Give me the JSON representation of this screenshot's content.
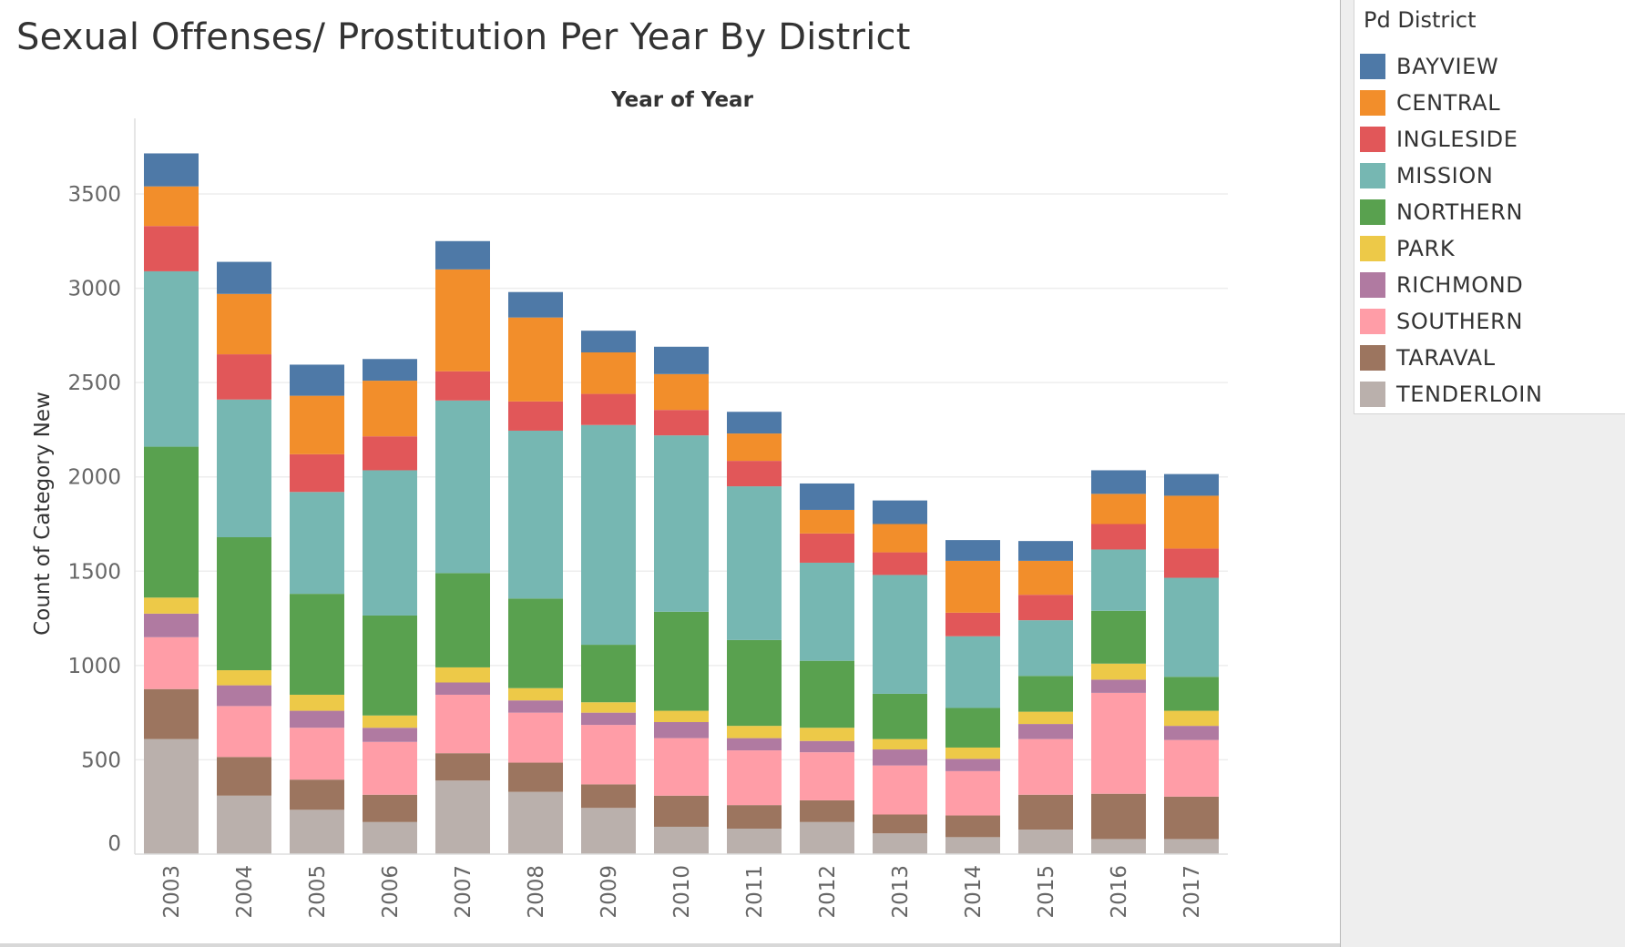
{
  "title": "Sexual Offenses/ Prostitution Per Year By District",
  "legend_title": "Pd District",
  "chart_data": {
    "type": "bar",
    "stacked": true,
    "title": "Sexual Offenses/ Prostitution Per Year By District",
    "xlabel": "Year of Year",
    "ylabel": "Count of Category New",
    "ylim": [
      0,
      3500
    ],
    "yticks": [
      0,
      500,
      1000,
      1500,
      2000,
      2500,
      3000,
      3500
    ],
    "grid": true,
    "legend_position": "right",
    "categories": [
      "2003",
      "2004",
      "2005",
      "2006",
      "2007",
      "2008",
      "2009",
      "2010",
      "2011",
      "2012",
      "2013",
      "2014",
      "2015",
      "2016",
      "2017"
    ],
    "series": [
      {
        "name": "TENDERLOIN",
        "color": "#bab0ac",
        "values": [
          610,
          310,
          235,
          170,
          390,
          330,
          245,
          145,
          135,
          170,
          110,
          90,
          130,
          80,
          80
        ]
      },
      {
        "name": "TARAVAL",
        "color": "#9c755f",
        "values": [
          265,
          205,
          160,
          145,
          145,
          155,
          125,
          165,
          125,
          115,
          100,
          115,
          185,
          240,
          225
        ]
      },
      {
        "name": "SOUTHERN",
        "color": "#ff9da7",
        "values": [
          275,
          270,
          275,
          280,
          310,
          265,
          315,
          305,
          290,
          255,
          260,
          235,
          295,
          535,
          300
        ]
      },
      {
        "name": "RICHMOND",
        "color": "#b07aa1",
        "values": [
          125,
          110,
          90,
          75,
          65,
          65,
          65,
          85,
          65,
          60,
          85,
          65,
          80,
          70,
          75
        ]
      },
      {
        "name": "PARK",
        "color": "#edc948",
        "values": [
          85,
          80,
          85,
          65,
          80,
          65,
          55,
          60,
          65,
          70,
          55,
          60,
          65,
          85,
          80
        ]
      },
      {
        "name": "NORTHERN",
        "color": "#59a14f",
        "values": [
          800,
          705,
          535,
          530,
          500,
          475,
          305,
          525,
          455,
          355,
          240,
          210,
          190,
          280,
          180
        ]
      },
      {
        "name": "MISSION",
        "color": "#76b7b2",
        "values": [
          930,
          730,
          540,
          770,
          915,
          890,
          1165,
          935,
          815,
          520,
          630,
          380,
          295,
          325,
          525
        ]
      },
      {
        "name": "INGLESIDE",
        "color": "#e15759",
        "values": [
          240,
          240,
          200,
          180,
          155,
          155,
          165,
          135,
          135,
          155,
          120,
          125,
          135,
          135,
          155
        ]
      },
      {
        "name": "CENTRAL",
        "color": "#f28e2b",
        "values": [
          210,
          320,
          310,
          295,
          540,
          445,
          220,
          190,
          145,
          125,
          150,
          275,
          180,
          160,
          280
        ]
      },
      {
        "name": "BAYVIEW",
        "color": "#4e79a7",
        "values": [
          175,
          170,
          165,
          115,
          150,
          135,
          115,
          145,
          115,
          140,
          125,
          110,
          105,
          125,
          115
        ]
      }
    ]
  }
}
